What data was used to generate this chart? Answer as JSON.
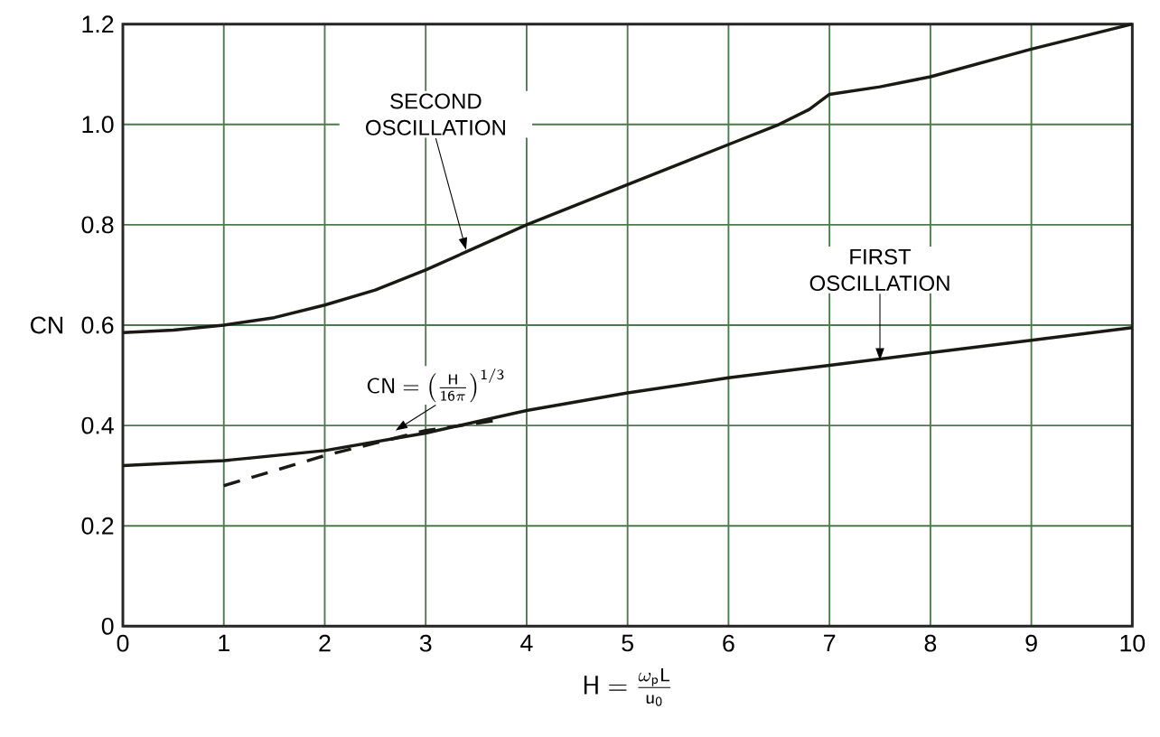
{
  "chart_data": {
    "type": "line",
    "xlabel": "\\mathsf{H}=\\frac{\\omega_{\\mathsf{p}}\\mathsf{L}}{\\mathsf{u_{0}}}",
    "ylabel": "CN",
    "x": [
      0,
      0.5,
      1,
      1.5,
      2,
      2.5,
      3,
      3.5,
      4,
      5,
      6,
      6.5,
      6.8,
      7,
      7.5,
      8,
      9,
      10
    ],
    "series": [
      {
        "color": "#1a1a14",
        "values": [
          0.585,
          0.59,
          0.6,
          0.615,
          0.64,
          0.67,
          0.71,
          0.755,
          0.8,
          0.88,
          0.96,
          1.0,
          1.03,
          1.06,
          1.075,
          1.095,
          1.15,
          1.2
        ]
      },
      {
        "color": "#1a1a14",
        "x": [
          0,
          1,
          2,
          3,
          4,
          5,
          6,
          7,
          8,
          9,
          10
        ],
        "values": [
          0.32,
          0.33,
          0.35,
          0.385,
          0.43,
          0.465,
          0.495,
          0.52,
          0.545,
          0.57,
          0.595
        ]
      },
      {
        "color": "#1a1a14",
        "line_style": "dashed",
        "x": [
          1,
          1.5,
          2,
          2.5,
          3,
          3.7
        ],
        "values": [
          0.28,
          0.31,
          0.34,
          0.365,
          0.39,
          0.41
        ]
      }
    ],
    "annotations": [
      {
        "text": "SECOND OSCILLATION",
        "x": 3.4,
        "y": 0.75
      },
      {
        "text": "FIRST OSCILLATION",
        "x": 7.5,
        "y": 0.53
      },
      {
        "text": "\\mathsf{CN}=\\left(\\frac{\\mathsf{H}}{\\mathsf{16}\\pi}\\right)^{\\mathsf{1/3}}",
        "x": 2.7,
        "y": 0.39
      }
    ],
    "xlim": [
      0,
      10
    ],
    "ylim": [
      0,
      1.2
    ],
    "xticks": [
      0,
      1,
      2,
      3,
      4,
      5,
      6,
      7,
      8,
      9,
      10
    ],
    "yticks": [
      0,
      0.2,
      0.4,
      0.6,
      0.8,
      {
        "value": 1,
        "label": "1.0"
      },
      1.2
    ],
    "grid": true
  }
}
